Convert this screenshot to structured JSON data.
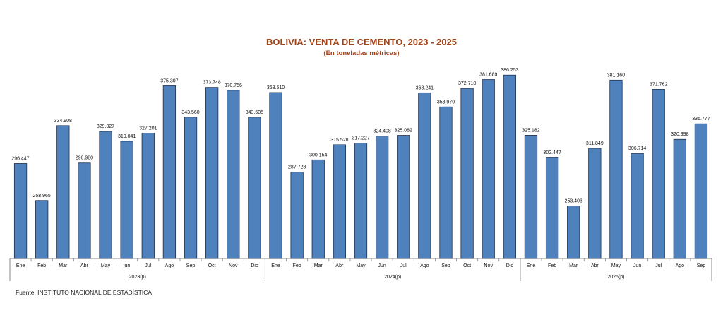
{
  "chart_data": {
    "type": "bar",
    "title": "BOLIVIA: VENTA DE CEMENTO, 2023 - 2025",
    "subtitle": "(En toneladas métricas)",
    "source": "Fuente: INSTITUTO NACIONAL DE ESTADÍSTICA",
    "bar_color": "#4f81bd",
    "title_color": "#a0441a",
    "groups": [
      {
        "label": "2023(p)",
        "categories": [
          "Ene",
          "Feb",
          "Mar",
          "Abr",
          "May",
          "jun",
          "Jul",
          "Ago",
          "Sep",
          "Oct",
          "Nov",
          "Dic"
        ],
        "values": [
          296447,
          258965,
          334908,
          296980,
          329027,
          319041,
          327201,
          375307,
          343560,
          373748,
          370756,
          343505
        ],
        "value_labels": [
          "296.447",
          "258.965",
          "334.908",
          "296.980",
          "329.027",
          "319.041",
          "327.201",
          "375.307",
          "343.560",
          "373.748",
          "370.756",
          "343.505"
        ]
      },
      {
        "label": "2024(p)",
        "categories": [
          "Ene",
          "Feb",
          "Mar",
          "Abr",
          "May",
          "Jun",
          "Jul",
          "Ago",
          "Sep",
          "Oct",
          "Nov",
          "Dic"
        ],
        "values": [
          368510,
          287728,
          300154,
          315528,
          317227,
          324408,
          325082,
          368241,
          353970,
          372710,
          381689,
          386253
        ],
        "value_labels": [
          "368.510",
          "287.728",
          "300.154",
          "315.528",
          "317.227",
          "324.408",
          "325.082",
          "368.241",
          "353.970",
          "372.710",
          "381.689",
          "386.253"
        ]
      },
      {
        "label": "2025(p)",
        "categories": [
          "Ene",
          "Feb",
          "Mar",
          "Abr",
          "May",
          "Jun",
          "Jul",
          "Ago",
          "Sep"
        ],
        "values": [
          325182,
          302447,
          253403,
          311849,
          381160,
          306714,
          371762,
          320998,
          336777
        ],
        "value_labels": [
          "325.182",
          "302.447",
          "253.403",
          "311.849",
          "381.160",
          "306.714",
          "371.762",
          "320.998",
          "336.777"
        ]
      }
    ],
    "ylim": [
      200000,
      390000
    ],
    "grid": false,
    "legend": "none"
  }
}
